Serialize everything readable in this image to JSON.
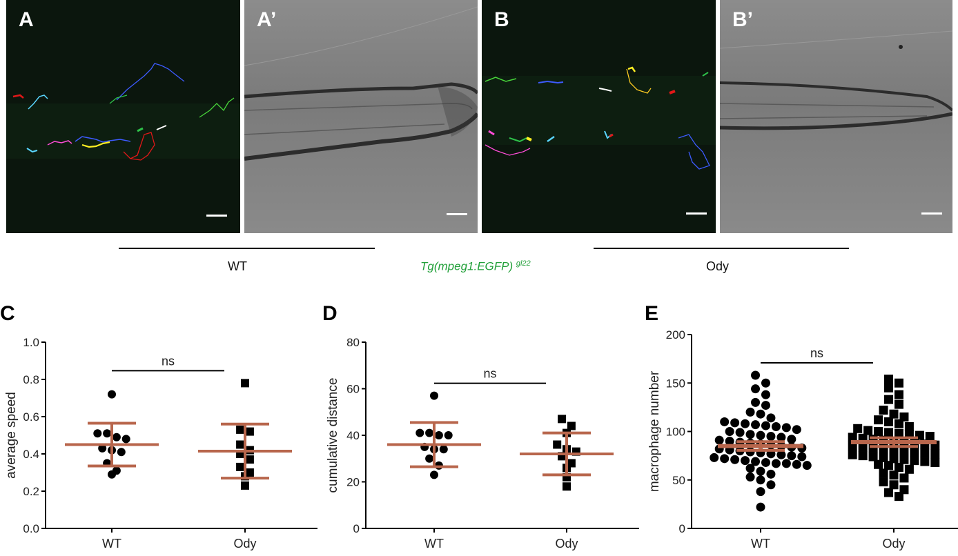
{
  "panels": [
    {
      "id": "A",
      "letter": "A",
      "kind": "fluorescence"
    },
    {
      "id": "A2",
      "letter": "A’",
      "kind": "brightfield"
    },
    {
      "id": "B",
      "letter": "B",
      "kind": "fluorescence"
    },
    {
      "id": "B2",
      "letter": "B’",
      "kind": "brightfield"
    }
  ],
  "genotypes": {
    "left": "WT",
    "right": "Ody"
  },
  "transgene": {
    "main": "Tg(mpeg1:EGFP)",
    "sup": "gl22"
  },
  "colors": {
    "error_bar": "#b8664c",
    "axis": "#000000",
    "transgene": "#22a03a"
  },
  "chart_data": [
    {
      "panel_letter": "C",
      "type": "scatter",
      "ylabel": "average speed",
      "categories": [
        "WT",
        "Ody"
      ],
      "ylim": [
        0,
        1.0
      ],
      "yticks": [
        0.0,
        0.2,
        0.4,
        0.6,
        0.8,
        1.0
      ],
      "ytick_labels": [
        "0.0",
        "0.2",
        "0.4",
        "0.6",
        "0.8",
        "1.0"
      ],
      "significance": "ns",
      "series": [
        {
          "marker": "circle",
          "category": "WT",
          "values": [
            0.72,
            0.51,
            0.51,
            0.49,
            0.48,
            0.43,
            0.42,
            0.41,
            0.35,
            0.31,
            0.29
          ],
          "mean": 0.45,
          "sd": 0.115
        },
        {
          "marker": "square",
          "category": "Ody",
          "values": [
            0.78,
            0.53,
            0.52,
            0.45,
            0.42,
            0.4,
            0.37,
            0.33,
            0.3,
            0.28,
            0.23
          ],
          "mean": 0.415,
          "sd": 0.145
        }
      ]
    },
    {
      "panel_letter": "D",
      "type": "scatter",
      "ylabel": "cumulative distance",
      "categories": [
        "WT",
        "Ody"
      ],
      "ylim": [
        0,
        80
      ],
      "yticks": [
        0,
        20,
        40,
        60,
        80
      ],
      "ytick_labels": [
        "0",
        "20",
        "40",
        "60",
        "80"
      ],
      "significance": "ns",
      "series": [
        {
          "marker": "circle",
          "category": "WT",
          "values": [
            57,
            41,
            41,
            40,
            40,
            35,
            34,
            34,
            30,
            27,
            23
          ],
          "mean": 36,
          "sd": 9.5
        },
        {
          "marker": "square",
          "category": "Ody",
          "values": [
            47,
            44,
            41,
            36,
            34,
            33,
            31,
            28,
            26,
            22,
            18
          ],
          "mean": 32,
          "sd": 9.0
        }
      ]
    },
    {
      "panel_letter": "E",
      "type": "scatter",
      "ylabel": "macrophage number",
      "categories": [
        "WT",
        "Ody"
      ],
      "ylim": [
        0,
        200
      ],
      "yticks": [
        0,
        50,
        100,
        150,
        200
      ],
      "ytick_labels": [
        "0",
        "50",
        "100",
        "150",
        "200"
      ],
      "significance": "ns",
      "series": [
        {
          "marker": "circle",
          "category": "WT",
          "values": [
            158,
            150,
            144,
            138,
            130,
            127,
            120,
            118,
            114,
            110,
            109,
            108,
            107,
            106,
            105,
            104,
            102,
            100,
            99,
            97,
            96,
            95,
            94,
            92,
            91,
            90,
            89,
            88,
            87,
            86,
            85,
            84,
            83,
            82,
            81,
            80,
            79,
            78,
            77,
            76,
            75,
            74,
            73,
            72,
            71,
            70,
            69,
            68,
            67,
            67,
            66,
            65,
            62,
            59,
            56,
            53,
            50,
            45,
            38,
            22
          ],
          "mean": 85,
          "sd": 4.5
        },
        {
          "marker": "square",
          "category": "Ody",
          "values": [
            154,
            150,
            145,
            138,
            133,
            128,
            122,
            118,
            115,
            112,
            110,
            108,
            105,
            103,
            101,
            100,
            99,
            98,
            97,
            96,
            95,
            94,
            93,
            92,
            91,
            90,
            89,
            88,
            87,
            86,
            85,
            84,
            83,
            82,
            81,
            80,
            79,
            78,
            77,
            76,
            75,
            74,
            73,
            72,
            71,
            70,
            69,
            68,
            66,
            65,
            63,
            61,
            57,
            55,
            52,
            48,
            45,
            40,
            37,
            33
          ],
          "mean": 89,
          "sd": 4.5
        }
      ]
    }
  ]
}
